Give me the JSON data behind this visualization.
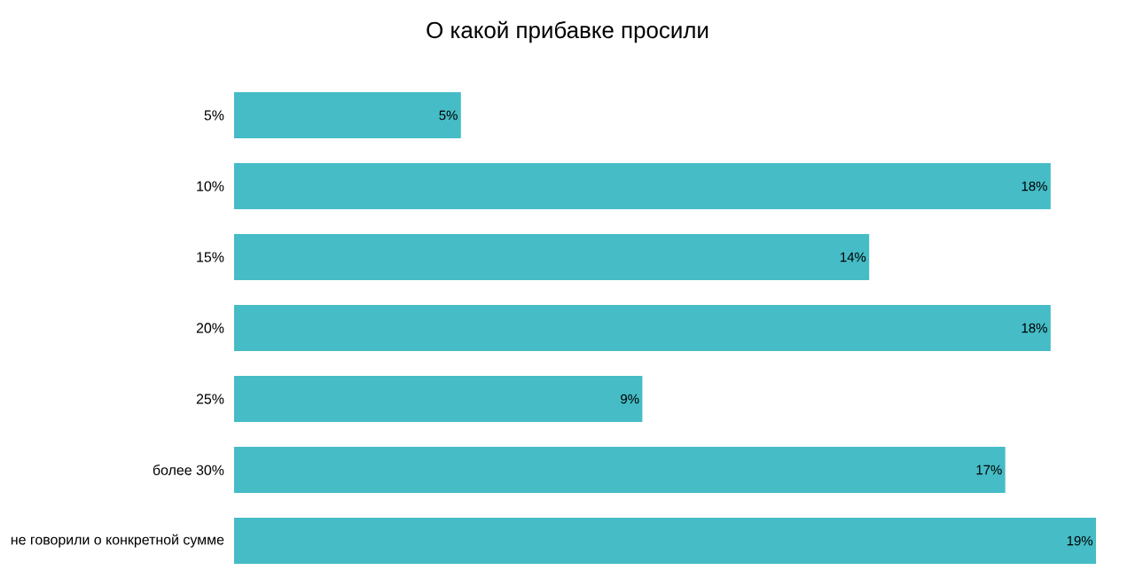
{
  "chart_data": {
    "type": "bar",
    "orientation": "horizontal",
    "title": "О какой прибавке просили",
    "categories": [
      "5%",
      "10%",
      "15%",
      "20%",
      "25%",
      "более 30%",
      "не говорили о конкретной сумме"
    ],
    "values": [
      5,
      18,
      14,
      18,
      9,
      17,
      19
    ],
    "value_labels": [
      "5%",
      "18%",
      "14%",
      "18%",
      "9%",
      "17%",
      "19%"
    ],
    "color": "#45bcc6"
  }
}
